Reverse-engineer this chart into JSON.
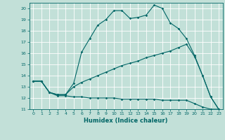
{
  "xlabel": "Humidex (Indice chaleur)",
  "bg_color": "#c2e0d8",
  "line_color": "#006666",
  "grid_color": "#ffffff",
  "xlim": [
    -0.5,
    23.5
  ],
  "ylim": [
    11,
    20.5
  ],
  "xticks": [
    0,
    1,
    2,
    3,
    4,
    5,
    6,
    7,
    8,
    9,
    10,
    11,
    12,
    13,
    14,
    15,
    16,
    17,
    18,
    19,
    20,
    21,
    22,
    23
  ],
  "yticks": [
    11,
    12,
    13,
    14,
    15,
    16,
    17,
    18,
    19,
    20
  ],
  "line1_x": [
    0,
    1,
    2,
    3,
    4,
    5,
    6,
    7,
    8,
    9,
    10,
    11,
    12,
    13,
    14,
    15,
    16,
    17,
    18,
    19,
    20,
    21,
    22,
    23
  ],
  "line1_y": [
    13.5,
    13.5,
    12.5,
    12.3,
    12.3,
    13.3,
    16.1,
    17.3,
    18.5,
    19.0,
    19.8,
    19.8,
    19.1,
    19.2,
    19.4,
    20.3,
    20.0,
    18.7,
    18.2,
    17.3,
    15.8,
    14.0,
    12.1,
    11.0
  ],
  "line2_x": [
    0,
    1,
    2,
    3,
    4,
    5,
    6,
    7,
    8,
    9,
    10,
    11,
    12,
    13,
    14,
    15,
    16,
    17,
    18,
    19,
    20,
    21,
    22,
    23
  ],
  "line2_y": [
    13.5,
    13.5,
    12.5,
    12.3,
    12.3,
    13.0,
    13.4,
    13.7,
    14.0,
    14.3,
    14.6,
    14.9,
    15.1,
    15.3,
    15.6,
    15.8,
    16.0,
    16.2,
    16.5,
    16.8,
    15.7,
    14.0,
    12.1,
    11.0
  ],
  "line3_x": [
    0,
    1,
    2,
    3,
    4,
    5,
    6,
    7,
    8,
    9,
    10,
    11,
    12,
    13,
    14,
    15,
    16,
    17,
    18,
    19,
    20,
    21,
    22,
    23
  ],
  "line3_y": [
    13.5,
    13.5,
    12.5,
    12.2,
    12.2,
    12.1,
    12.1,
    12.0,
    12.0,
    12.0,
    12.0,
    11.9,
    11.9,
    11.9,
    11.9,
    11.9,
    11.8,
    11.8,
    11.8,
    11.8,
    11.5,
    11.2,
    11.0,
    11.0
  ]
}
